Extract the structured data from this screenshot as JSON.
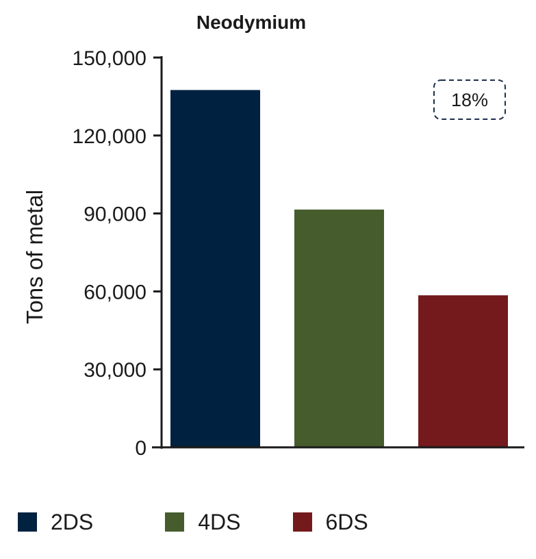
{
  "chart_data": {
    "type": "bar",
    "title": "Neodymium",
    "ylabel": "Tons of metal",
    "xlabel": "",
    "categories": [
      "2DS",
      "4DS",
      "6DS"
    ],
    "values": [
      137500,
      91500,
      58500
    ],
    "colors": [
      "#00213f",
      "#465c2d",
      "#741a1c"
    ],
    "ylim": [
      0,
      150000
    ],
    "yticks": [
      0,
      30000,
      60000,
      90000,
      120000,
      150000
    ],
    "ytick_labels": [
      "0",
      "30,000",
      "60,000",
      "90,000",
      "120,000",
      "150,000"
    ],
    "annotation": "18%",
    "grid": false,
    "legend": {
      "position": "bottom",
      "entries": [
        {
          "label": "2DS",
          "color": "#00213f"
        },
        {
          "label": "4DS",
          "color": "#465c2d"
        },
        {
          "label": "6DS",
          "color": "#741a1c"
        }
      ]
    }
  }
}
